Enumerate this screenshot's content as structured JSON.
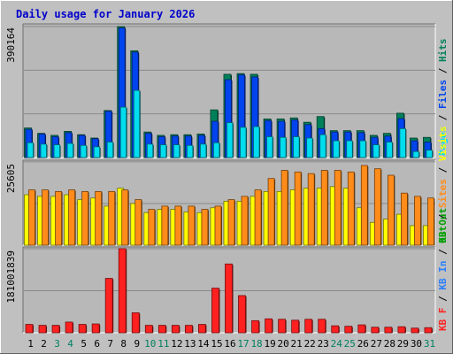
{
  "title": "Daily usage for January 2026",
  "colors": {
    "background": "#c0c0c0",
    "panel": "#b8b8b8",
    "title": "#0000cc",
    "hits": "#00805a",
    "files": "#0044ee",
    "pages": "#00ddee",
    "visits": "#ffff00",
    "sites": "#ff8c1a",
    "kbin": "#2a7fff",
    "kbout": "#00a000",
    "kbf": "#ff2020",
    "weekday": "#000000",
    "weekend": "#008060"
  },
  "chart_data": [
    {
      "type": "bar",
      "name": "hits-files-pages",
      "ymax_label": "390164",
      "ylim": [
        0,
        390164
      ],
      "legend": [
        "Pages",
        "Files",
        "Hits"
      ],
      "series": [
        {
          "name": "Hits",
          "values": [
            88000,
            72000,
            66000,
            78000,
            68000,
            58000,
            140000,
            390000,
            318000,
            76000,
            66000,
            68000,
            68000,
            70000,
            142000,
            248000,
            250000,
            248000,
            115000,
            115000,
            118000,
            105000,
            122000,
            80000,
            80000,
            80000,
            66000,
            72000,
            132000,
            58000,
            60000
          ]
        },
        {
          "name": "Files",
          "values": [
            84000,
            70000,
            62000,
            74000,
            66000,
            56000,
            138000,
            386000,
            314000,
            72000,
            62000,
            64000,
            64000,
            66000,
            108000,
            232000,
            246000,
            240000,
            110000,
            108000,
            112000,
            98000,
            86000,
            76000,
            76000,
            74000,
            60000,
            64000,
            116000,
            50000,
            46000
          ]
        },
        {
          "name": "Pages",
          "values": [
            44000,
            40000,
            38000,
            42000,
            36000,
            32000,
            46000,
            150000,
            200000,
            40000,
            38000,
            38000,
            36000,
            40000,
            44000,
            104000,
            90000,
            92000,
            62000,
            60000,
            62000,
            58000,
            68000,
            50000,
            50000,
            50000,
            38000,
            46000,
            86000,
            18000,
            22000
          ]
        }
      ]
    },
    {
      "type": "bar",
      "name": "visits-sites",
      "ymax_label": "25605",
      "ylim": [
        0,
        25605
      ],
      "legend": [
        "Visits",
        "Sites",
        "Out"
      ],
      "series": [
        {
          "name": "Visits",
          "values": [
            15500,
            15000,
            15000,
            15500,
            14000,
            14500,
            12000,
            17500,
            12800,
            10000,
            11000,
            11000,
            10200,
            10000,
            11500,
            13500,
            13500,
            15000,
            16500,
            16500,
            17000,
            17500,
            17500,
            18000,
            17500,
            11500,
            7000,
            8000,
            9500,
            6000,
            6000
          ]
        },
        {
          "name": "Sites",
          "values": [
            17000,
            17000,
            16500,
            17000,
            16500,
            16500,
            16500,
            17000,
            14000,
            11000,
            12000,
            12000,
            12000,
            11000,
            12000,
            14000,
            15000,
            17000,
            20500,
            23000,
            22500,
            22000,
            23000,
            23000,
            22500,
            24500,
            23500,
            21500,
            16000,
            15000,
            14500
          ]
        }
      ]
    },
    {
      "type": "bar",
      "name": "kbf",
      "ymax_label": "181001839",
      "ylim": [
        0,
        181001839
      ],
      "legend": [
        "KB F",
        "KB In",
        "KB Out"
      ],
      "series": [
        {
          "name": "KB F",
          "values": [
            18000000,
            16000000,
            16000000,
            23000000,
            18000000,
            19000000,
            117000000,
            181000000,
            43000000,
            16000000,
            16000000,
            16000000,
            16000000,
            18000000,
            96000000,
            148000000,
            80000000,
            26000000,
            30000000,
            29000000,
            27000000,
            29000000,
            29000000,
            15000000,
            14000000,
            17000000,
            12000000,
            12000000,
            13000000,
            10000000,
            11000000
          ]
        }
      ]
    }
  ],
  "xaxis": {
    "days": [
      "1",
      "2",
      "3",
      "4",
      "5",
      "6",
      "7",
      "8",
      "9",
      "10",
      "11",
      "12",
      "13",
      "14",
      "15",
      "16",
      "17",
      "18",
      "19",
      "20",
      "21",
      "22",
      "23",
      "24",
      "25",
      "26",
      "27",
      "28",
      "29",
      "30",
      "31"
    ],
    "weekend": [
      false,
      false,
      true,
      true,
      false,
      false,
      false,
      false,
      false,
      true,
      true,
      false,
      false,
      false,
      false,
      false,
      true,
      true,
      false,
      false,
      false,
      false,
      false,
      true,
      true,
      false,
      false,
      false,
      false,
      false,
      true
    ]
  }
}
